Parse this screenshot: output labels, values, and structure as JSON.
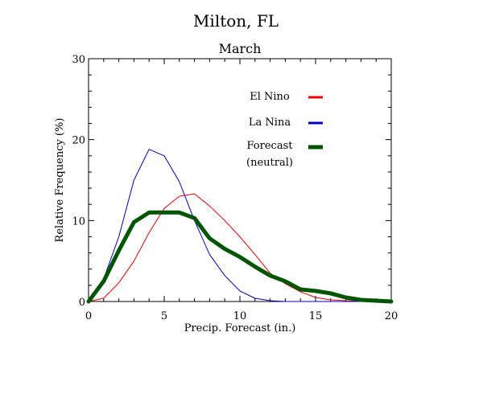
{
  "chart_data": {
    "type": "line",
    "title": "Milton, FL",
    "subtitle": "March",
    "xlabel": "Precip. Forecast (in.)",
    "ylabel": "Relative Frequency (%)",
    "xlim": [
      0,
      20
    ],
    "ylim": [
      0,
      30
    ],
    "x_ticks": [
      0,
      5,
      10,
      15,
      20
    ],
    "y_ticks": [
      0,
      10,
      20,
      30
    ],
    "x_minor_step": 1,
    "y_minor_step": 2,
    "grid": false,
    "legend_placement": "upper-right inside plot",
    "series": [
      {
        "name": "El Nino",
        "color": "#ee0000",
        "stroke_weight": "thin",
        "x": [
          0,
          1,
          2,
          3,
          4,
          5,
          6,
          7,
          8,
          9,
          10,
          11,
          12,
          13,
          14,
          15,
          16,
          17,
          18,
          19,
          20
        ],
        "values": [
          0,
          0.4,
          2.3,
          5.0,
          8.5,
          11.5,
          13.0,
          13.3,
          11.8,
          10.0,
          8.0,
          5.8,
          3.5,
          2.2,
          1.2,
          0.5,
          0.2,
          0.1,
          0,
          0,
          0
        ]
      },
      {
        "name": "La Nina",
        "color": "#0000cc",
        "stroke_weight": "thin",
        "x": [
          0,
          1,
          2,
          3,
          4,
          5,
          6,
          7,
          8,
          9,
          10,
          11,
          12,
          13,
          14,
          15,
          16,
          17,
          18,
          19,
          20
        ],
        "values": [
          0,
          2.8,
          8.0,
          15.0,
          18.8,
          18.0,
          14.8,
          10.0,
          5.8,
          3.2,
          1.3,
          0.4,
          0.1,
          0,
          0,
          0,
          0,
          0,
          0,
          0,
          0
        ]
      },
      {
        "name": "Forecast\n(neutral)",
        "color": "#005500",
        "stroke_weight": "thick",
        "x": [
          0,
          1,
          2,
          3,
          4,
          5,
          6,
          7,
          8,
          9,
          10,
          11,
          12,
          13,
          14,
          15,
          16,
          17,
          18,
          19,
          20
        ],
        "values": [
          0,
          2.5,
          6.3,
          9.8,
          11.0,
          11.0,
          11.0,
          10.3,
          7.8,
          6.5,
          5.5,
          4.3,
          3.2,
          2.5,
          1.5,
          1.3,
          1.0,
          0.5,
          0.2,
          0.1,
          0
        ]
      }
    ]
  },
  "legend": [
    {
      "lines": [
        "El Nino"
      ],
      "color": "#ee0000",
      "thick": false
    },
    {
      "lines": [
        "La Nina"
      ],
      "color": "#0000cc",
      "thick": false
    },
    {
      "lines": [
        "Forecast",
        "(neutral)"
      ],
      "color": "#005500",
      "thick": true
    }
  ]
}
